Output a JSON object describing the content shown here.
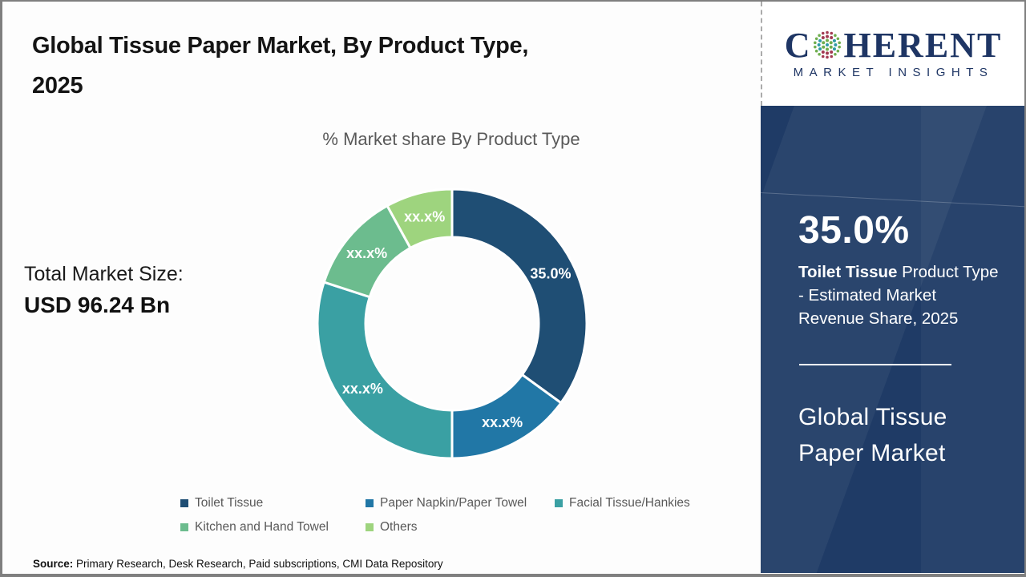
{
  "header": {
    "title_line1": "Global Tissue Paper Market, By Product Type,",
    "title_line2": "2025"
  },
  "brand": {
    "name_prefix": "C",
    "name_suffix": "HERENT",
    "tagline": "MARKET INSIGHTS"
  },
  "market": {
    "total_label": "Total Market Size:",
    "total_value": "USD 96.24 Bn"
  },
  "chart_data": {
    "type": "pie",
    "subtype": "donut",
    "title": "% Market share By Product Type",
    "legend_position": "bottom",
    "series": [
      {
        "label": "Toilet Tissue",
        "display_value": "35.0%",
        "value_pct": 35.0,
        "color": "#1f4e74"
      },
      {
        "label": "Paper Napkin/Paper Towel",
        "display_value": "xx.x%",
        "value_pct": 15.0,
        "color": "#2177a6"
      },
      {
        "label": "Facial Tissue/Hankies",
        "display_value": "xx.x%",
        "value_pct": 30.0,
        "color": "#3aa0a3"
      },
      {
        "label": "Kitchen and Hand Towel",
        "display_value": "xx.x%",
        "value_pct": 12.0,
        "color": "#6cbc8e"
      },
      {
        "label": "Others",
        "display_value": "xx.x%",
        "value_pct": 8.0,
        "color": "#9ed47e"
      }
    ],
    "note": "Only the Toilet Tissue share (35.0%) is disclosed; other segment values are masked as xx.x% in the source graphic; value_pct for masked slices estimated from arc angles."
  },
  "sidebar": {
    "stat_value": "35.0%",
    "stat_desc_bold": "Toilet Tissue",
    "stat_desc_line1_rest": " Product Type",
    "stat_desc_line2": "- Estimated Market",
    "stat_desc_line3": "Revenue Share, 2025",
    "market_name_line1": "Global Tissue",
    "market_name_line2": "Paper Market"
  },
  "footer": {
    "source_label": "Source:",
    "source_text": " Primary Research, Desk Research, Paid subscriptions, CMI Data Repository"
  },
  "colors": {
    "sidebar_navy": "#1f3b66",
    "logo_navy": "#1e3564",
    "border_gray": "#7f7f7f",
    "muted_text_gray": "#595959",
    "slice_label_white": "#ffffff",
    "logo_dot_teal": "#2e9ba6",
    "logo_dot_green": "#6fae4e",
    "logo_dot_red": "#a23b52"
  }
}
